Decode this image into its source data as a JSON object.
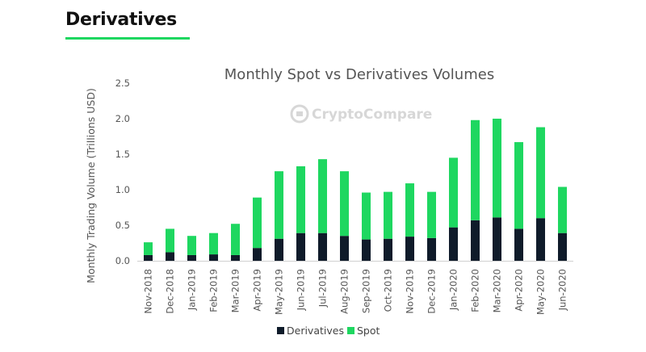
{
  "header": {
    "title": "Derivatives"
  },
  "watermark": {
    "text": "CryptoCompare"
  },
  "colors": {
    "derivatives": "#0f1b2a",
    "spot": "#1ed760",
    "accent": "#1ed760"
  },
  "chart_data": {
    "type": "bar",
    "stacked": true,
    "title": "Monthly Spot vs Derivatives Volumes",
    "xlabel": "",
    "ylabel": "Monthly Trading Volume (Trillions USD)",
    "ylim": [
      0,
      2.5
    ],
    "yticks": [
      "0.0",
      "0.5",
      "1.0",
      "1.5",
      "2.0",
      "2.5"
    ],
    "grid": false,
    "legend_position": "bottom",
    "categories": [
      "Nov-2018",
      "Dec-2018",
      "Jan-2019",
      "Feb-2019",
      "Mar-2019",
      "Apr-2019",
      "May-2019",
      "Jun-2019",
      "Jul-2019",
      "Aug-2019",
      "Sep-2019",
      "Oct-2019",
      "Nov-2019",
      "Dec-2019",
      "Jan-2020",
      "Feb-2020",
      "Mar-2020",
      "Apr-2020",
      "May-2020",
      "Jun-2020"
    ],
    "series": [
      {
        "name": "Derivatives",
        "values": [
          0.08,
          0.12,
          0.08,
          0.09,
          0.08,
          0.18,
          0.31,
          0.39,
          0.39,
          0.35,
          0.3,
          0.31,
          0.34,
          0.32,
          0.47,
          0.57,
          0.61,
          0.45,
          0.6,
          0.39
        ]
      },
      {
        "name": "Spot",
        "values": [
          0.18,
          0.33,
          0.27,
          0.3,
          0.44,
          0.71,
          0.95,
          0.94,
          1.04,
          0.91,
          0.66,
          0.66,
          0.75,
          0.65,
          0.98,
          1.41,
          1.39,
          1.22,
          1.28,
          0.65
        ]
      }
    ]
  }
}
